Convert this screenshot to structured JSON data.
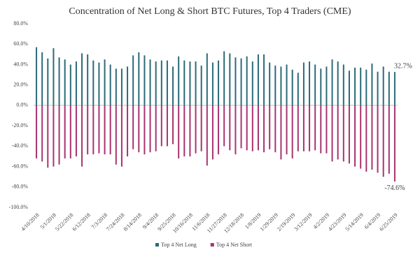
{
  "chart_data": {
    "type": "bar",
    "title": "Concentration of Net Long & Short BTC Futures, Top 4 Traders (CME)",
    "categories": [
      "4/10/2018",
      null,
      null,
      "5/1/2018",
      null,
      null,
      "5/22/2018",
      null,
      null,
      "6/12/2018",
      null,
      null,
      "7/3/2018",
      null,
      null,
      "7/24/2018",
      null,
      null,
      "8/14/2018",
      null,
      null,
      "9/4/2018",
      null,
      null,
      "9/25/2018",
      null,
      null,
      "10/16/2018",
      null,
      null,
      "11/6/2018",
      null,
      null,
      "11/27/2018",
      null,
      null,
      "12/18/2018",
      null,
      null,
      "1/8/2019",
      null,
      null,
      "1/29/2019",
      null,
      null,
      "2/19/2019",
      null,
      null,
      "3/12/2019",
      null,
      null,
      "4/2/2019",
      null,
      null,
      "4/23/2019",
      null,
      null,
      "5/14/2019",
      null,
      null,
      "6/4/2019",
      null,
      null,
      "6/25/2019"
    ],
    "series": [
      {
        "name": "Top 4 Net Long",
        "color": "#2b6a78",
        "values": [
          57,
          52,
          46,
          56,
          47,
          45,
          40,
          43,
          51,
          50,
          44,
          42,
          45,
          40,
          36,
          36,
          38,
          49,
          52,
          49,
          45,
          43,
          44,
          44,
          38,
          48,
          44,
          43,
          43,
          39,
          51,
          42,
          44,
          53,
          51,
          47,
          46,
          48,
          43,
          50,
          50,
          42,
          39,
          38,
          40,
          35,
          32,
          42,
          43,
          40,
          36,
          38,
          45,
          43,
          40,
          34,
          37,
          37,
          35,
          41,
          33,
          38,
          33,
          32.7
        ],
        "value_labels": [
          null,
          null,
          null,
          null,
          null,
          null,
          null,
          null,
          null,
          null,
          null,
          null,
          null,
          null,
          null,
          null,
          null,
          null,
          null,
          null,
          null,
          null,
          null,
          null,
          null,
          null,
          null,
          null,
          null,
          null,
          null,
          null,
          null,
          null,
          null,
          null,
          null,
          null,
          null,
          null,
          null,
          null,
          null,
          null,
          null,
          null,
          null,
          null,
          null,
          null,
          null,
          null,
          null,
          null,
          null,
          null,
          null,
          null,
          null,
          null,
          null,
          null,
          null,
          "32.7%"
        ]
      },
      {
        "name": "Top 4 Net Short",
        "color": "#a8336f",
        "values": [
          -52,
          -55,
          -61,
          -60,
          -58,
          -52,
          -52,
          -50,
          -60,
          -48,
          -48,
          -47,
          -48,
          -48,
          -58,
          -60,
          -50,
          -43,
          -46,
          -48,
          -46,
          -45,
          -40,
          -40,
          -38,
          -52,
          -50,
          -50,
          -47,
          -45,
          -59,
          -53,
          -48,
          -40,
          -44,
          -48,
          -42,
          -44,
          -45,
          -44,
          -46,
          -43,
          -46,
          -53,
          -48,
          -52,
          -45,
          -45,
          -45,
          -44,
          -47,
          -47,
          -55,
          -53,
          -55,
          -57,
          -60,
          -62,
          -65,
          -63,
          -66,
          -70,
          -67,
          -74.6
        ],
        "value_labels": [
          null,
          null,
          null,
          null,
          null,
          null,
          null,
          null,
          null,
          null,
          null,
          null,
          null,
          null,
          null,
          null,
          null,
          null,
          null,
          null,
          null,
          null,
          null,
          null,
          null,
          null,
          null,
          null,
          null,
          null,
          null,
          null,
          null,
          null,
          null,
          null,
          null,
          null,
          null,
          null,
          null,
          null,
          null,
          null,
          null,
          null,
          null,
          null,
          null,
          null,
          null,
          null,
          null,
          null,
          null,
          null,
          null,
          null,
          null,
          null,
          null,
          null,
          null,
          "-74.6%"
        ]
      }
    ],
    "ylim": [
      -100,
      80
    ],
    "yticks": [
      {
        "value": 80,
        "label": "80.0%"
      },
      {
        "value": 60,
        "label": "60.0%"
      },
      {
        "value": 40,
        "label": "40.0%"
      },
      {
        "value": 20,
        "label": "20.0%"
      },
      {
        "value": 0,
        "label": "0.0%"
      },
      {
        "value": -20,
        "label": "-20.0%"
      },
      {
        "value": -40,
        "label": "-40.0%"
      },
      {
        "value": -60,
        "label": "-60.0%"
      },
      {
        "value": -80,
        "label": "-80.0%"
      },
      {
        "value": -100,
        "label": "-100.0%"
      }
    ]
  }
}
